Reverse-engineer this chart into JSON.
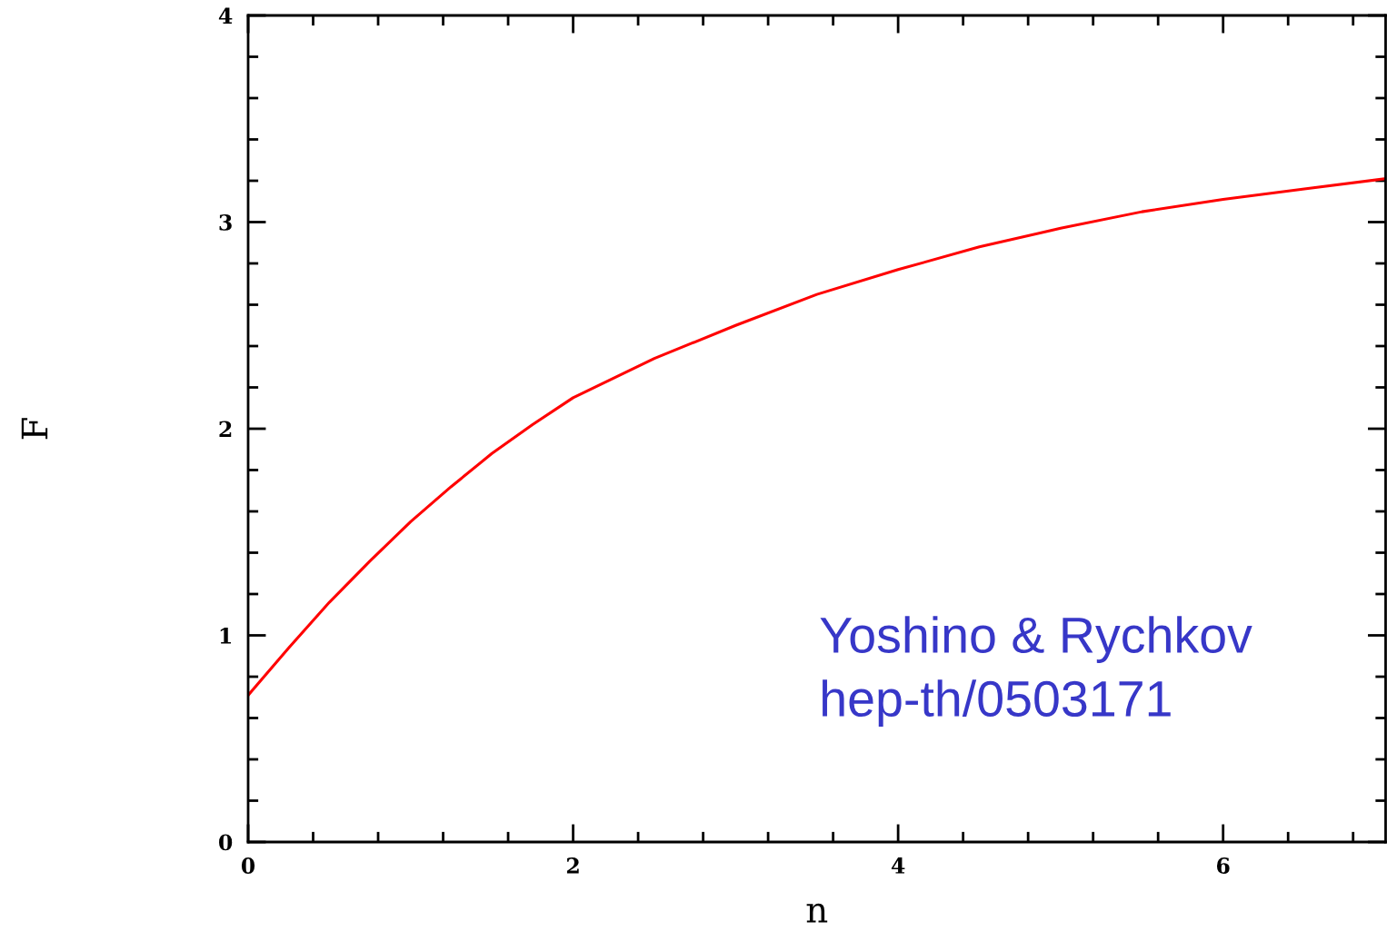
{
  "chart_data": {
    "type": "line",
    "xlabel": "n",
    "ylabel": "F",
    "x": [
      0,
      0.25,
      0.5,
      0.75,
      1,
      1.25,
      1.5,
      1.75,
      2,
      2.5,
      3,
      3.5,
      4,
      4.5,
      5,
      5.5,
      6,
      6.5,
      7
    ],
    "series": [
      {
        "color": "#ff0000",
        "values": [
          0.71,
          0.94,
          1.16,
          1.36,
          1.55,
          1.72,
          1.88,
          2.02,
          2.15,
          2.34,
          2.5,
          2.65,
          2.77,
          2.88,
          2.97,
          3.05,
          3.11,
          3.16,
          3.21
        ]
      }
    ],
    "xlim": [
      0,
      7
    ],
    "ylim": [
      0,
      4
    ],
    "xticks": [
      0,
      2,
      4,
      6
    ],
    "yticks": [
      0,
      1,
      2,
      3,
      4
    ],
    "grid": false,
    "legend": false,
    "marker": "none",
    "line_style": "solid",
    "annotations": [
      "Yoshino & Rychkov",
      "hep-th/0503171"
    ]
  }
}
